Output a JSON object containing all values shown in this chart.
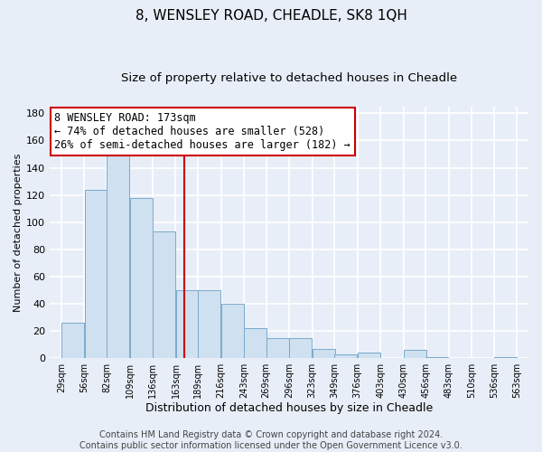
{
  "title": "8, WENSLEY ROAD, CHEADLE, SK8 1QH",
  "subtitle": "Size of property relative to detached houses in Cheadle",
  "xlabel": "Distribution of detached houses by size in Cheadle",
  "ylabel": "Number of detached properties",
  "bar_left_edges": [
    29,
    56,
    82,
    109,
    136,
    163,
    189,
    216,
    243,
    269,
    296,
    323,
    349,
    376,
    403,
    430,
    456,
    483,
    510,
    536
  ],
  "bar_heights": [
    26,
    124,
    150,
    118,
    93,
    50,
    50,
    40,
    22,
    15,
    15,
    7,
    3,
    4,
    0,
    6,
    1,
    0,
    0,
    1
  ],
  "bin_width": 27,
  "bar_color": "#cfe0f0",
  "bar_edge_color": "#7aaacc",
  "vline_x": 173,
  "vline_color": "#cc0000",
  "annotation_text": "8 WENSLEY ROAD: 173sqm\n← 74% of detached houses are smaller (528)\n26% of semi-detached houses are larger (182) →",
  "annotation_box_color": "#ffffff",
  "annotation_box_edge_color": "#cc0000",
  "ylim": [
    0,
    185
  ],
  "yticks": [
    0,
    20,
    40,
    60,
    80,
    100,
    120,
    140,
    160,
    180
  ],
  "x_tick_labels": [
    "29sqm",
    "56sqm",
    "82sqm",
    "109sqm",
    "136sqm",
    "163sqm",
    "189sqm",
    "216sqm",
    "243sqm",
    "269sqm",
    "296sqm",
    "323sqm",
    "349sqm",
    "376sqm",
    "403sqm",
    "430sqm",
    "456sqm",
    "483sqm",
    "510sqm",
    "536sqm",
    "563sqm"
  ],
  "x_tick_positions": [
    29,
    56,
    82,
    109,
    136,
    163,
    189,
    216,
    243,
    269,
    296,
    323,
    349,
    376,
    403,
    430,
    456,
    483,
    510,
    536,
    563
  ],
  "footer_line1": "Contains HM Land Registry data © Crown copyright and database right 2024.",
  "footer_line2": "Contains public sector information licensed under the Open Government Licence v3.0.",
  "background_color": "#e8eef8",
  "plot_bg_color": "#e8eef8",
  "grid_color": "#ffffff",
  "title_fontsize": 11,
  "subtitle_fontsize": 9.5,
  "annotation_fontsize": 8.5,
  "footer_fontsize": 7,
  "xlabel_fontsize": 9,
  "ylabel_fontsize": 8
}
